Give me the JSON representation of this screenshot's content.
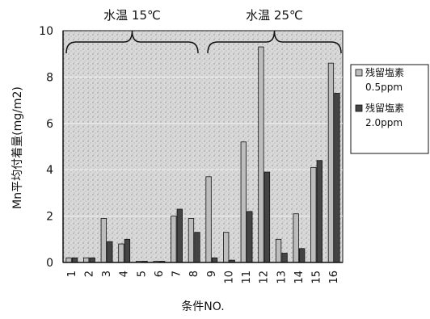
{
  "chart_data": {
    "type": "bar",
    "categories": [
      "1",
      "2",
      "3",
      "4",
      "5",
      "6",
      "7",
      "8",
      "9",
      "10",
      "11",
      "12",
      "13",
      "14",
      "15",
      "16"
    ],
    "series": [
      {
        "name": "残留塩素\n0.5ppm",
        "values": [
          0.2,
          0.2,
          1.9,
          0.8,
          0.05,
          0.05,
          2.0,
          1.9,
          3.7,
          1.3,
          5.2,
          9.3,
          1.0,
          2.1,
          4.1,
          8.6
        ]
      },
      {
        "name": "残留塩素\n2.0ppm",
        "values": [
          0.2,
          0.2,
          0.9,
          1.0,
          0.05,
          0.05,
          2.3,
          1.3,
          0.2,
          0.1,
          2.2,
          3.9,
          0.4,
          0.6,
          4.4,
          7.3
        ]
      }
    ],
    "ylabel": "Mn平均付着量(mg/m2)",
    "xlabel": "条件NO.",
    "ylim": [
      0,
      10
    ],
    "yticks": [
      0,
      2,
      4,
      6,
      8,
      10
    ],
    "grid": true,
    "legend_position": "right",
    "groups": [
      {
        "label": "水温 15℃",
        "categories": [
          "1",
          "2",
          "3",
          "4",
          "5",
          "6",
          "7",
          "8"
        ]
      },
      {
        "label": "水温 25℃",
        "categories": [
          "9",
          "10",
          "11",
          "12",
          "13",
          "14",
          "15",
          "16"
        ]
      }
    ],
    "colors": {
      "series_0": "#bdbdbd",
      "series_1": "#444444",
      "plot_bg": "#d9d9d9",
      "grid": "#f2f2f2",
      "axis": "#111111"
    }
  }
}
